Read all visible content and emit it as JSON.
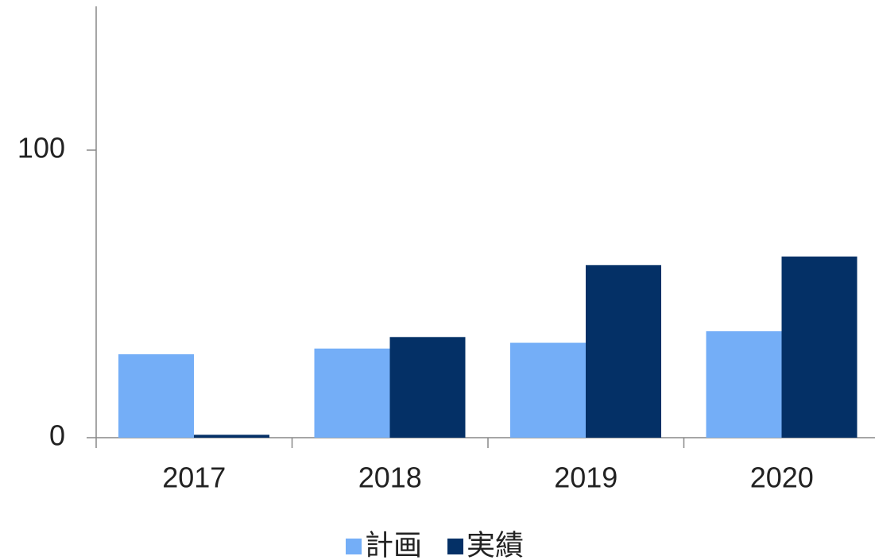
{
  "chart_data": {
    "type": "bar",
    "categories": [
      "2017",
      "2018",
      "2019",
      "2020"
    ],
    "series": [
      {
        "name": "計画",
        "color": "#74aef7",
        "values": [
          29,
          31,
          33,
          37
        ]
      },
      {
        "name": "実績",
        "color": "#043066",
        "values": [
          1,
          35,
          60,
          63
        ]
      }
    ],
    "ylim": [
      0,
      150
    ],
    "yticks": [
      0,
      100
    ],
    "legend": "bottom"
  }
}
